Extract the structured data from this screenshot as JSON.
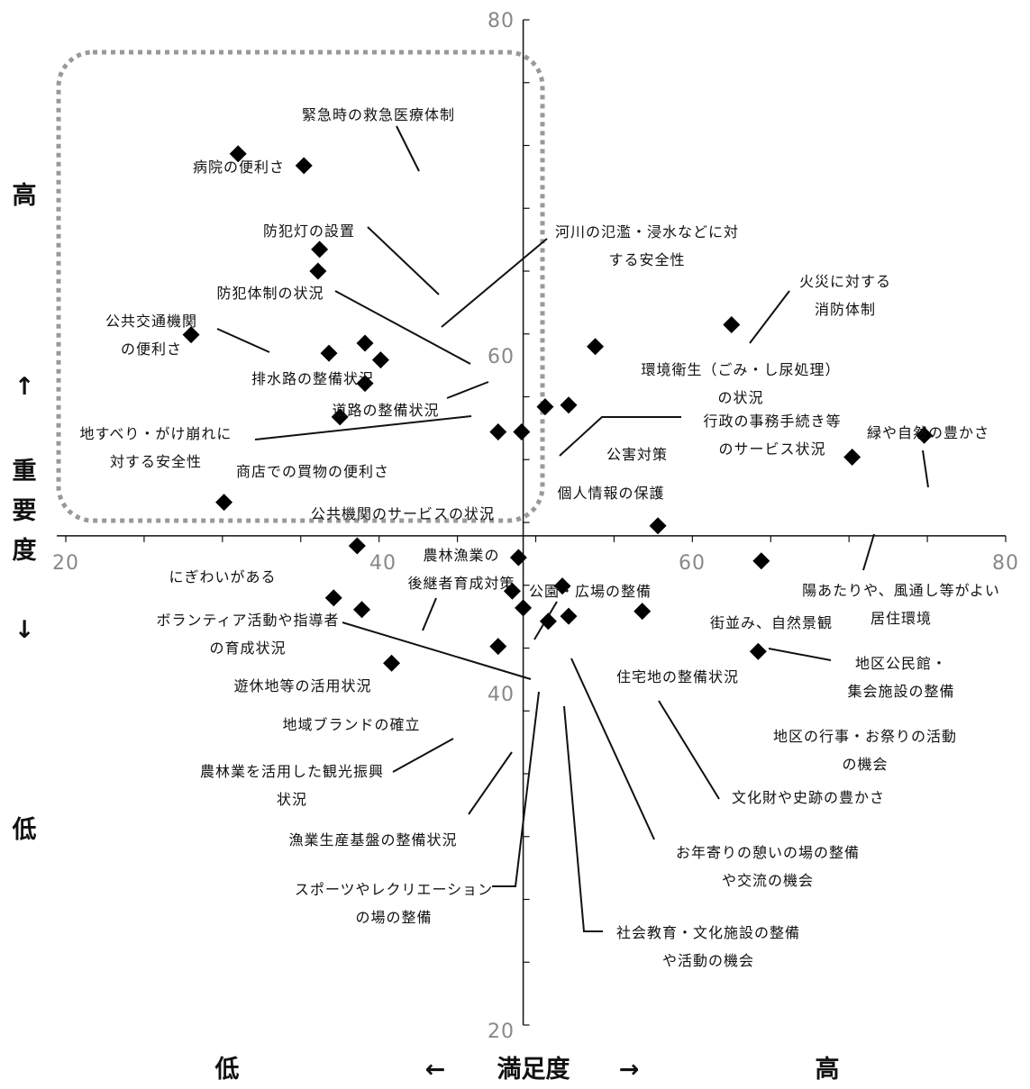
{
  "chart_data": {
    "type": "scatter",
    "title": "",
    "xlabel": "満足度",
    "ylabel": "重要度",
    "xlim": [
      20,
      80
    ],
    "ylim": [
      20,
      80
    ],
    "xticks": [
      "20",
      "40",
      "60",
      "80"
    ],
    "yticks": [
      "20",
      "40",
      "60",
      "80"
    ],
    "quadrant_center": [
      49.2,
      49.2
    ],
    "left_axis": {
      "high": "高",
      "up_arrow": "↑",
      "chars": [
        "重",
        "要",
        "度"
      ],
      "down_arrow": "↓",
      "low": "低"
    },
    "bottom_axis": {
      "low": "低",
      "left_arrow": "←",
      "label": "満足度",
      "right_arrow": "→",
      "high": "高"
    },
    "highlight_box_color": "#999999",
    "points": [
      {
        "label": [
          "緊急時の救急医療体制"
        ],
        "x": 35.2,
        "y": 71.3
      },
      {
        "label": [
          "病院の便利さ"
        ],
        "x": 31.0,
        "y": 72.0
      },
      {
        "label": [
          "防犯灯の設置"
        ],
        "x": 36.2,
        "y": 66.3
      },
      {
        "label": [
          "河川の氾濫・浸水などに対",
          "する安全性"
        ],
        "x": 36.1,
        "y": 65.0
      },
      {
        "label": [
          "防犯体制の状況"
        ],
        "x": 39.1,
        "y": 60.7
      },
      {
        "label": [
          "公共交通機関",
          "の便利さ"
        ],
        "x": 28.0,
        "y": 61.2
      },
      {
        "label": [
          "排水路の整備状況"
        ],
        "x": 36.8,
        "y": 60.1
      },
      {
        "label": [
          "道路の整備状況"
        ],
        "x": 40.1,
        "y": 59.7
      },
      {
        "label": [
          "地すべり・がけ崩れに",
          "対する安全性"
        ],
        "x": 39.1,
        "y": 58.3
      },
      {
        "label": [
          "商店での買物の便利さ"
        ],
        "x": 37.5,
        "y": 56.3
      },
      {
        "label": [
          "公共機関のサービスの状況"
        ],
        "x": 47.6,
        "y": 55.4
      },
      {
        "label": [
          "個人情報の保護"
        ],
        "x": 49.1,
        "y": 55.4
      },
      {
        "label": [
          "環境衛生（ごみ・し尿処理）",
          "の状況"
        ],
        "x": 53.8,
        "y": 60.5
      },
      {
        "label": [
          "行政の事務手続き等",
          "のサービス状況"
        ],
        "x": 50.6,
        "y": 56.9
      },
      {
        "label": [
          "公害対策"
        ],
        "x": 52.1,
        "y": 57.0
      },
      {
        "label": [
          "火災に対する",
          "消防体制"
        ],
        "x": 62.5,
        "y": 61.8
      },
      {
        "label": [
          "緑や自然の豊かさ"
        ],
        "x": 74.8,
        "y": 55.2
      },
      {
        "label": [
          "陽あたりや、風通し等がよい",
          "居住環境"
        ],
        "x": 70.2,
        "y": 53.9
      },
      {
        "label": [
          "にぎわいがある"
        ],
        "x": 30.1,
        "y": 51.2
      },
      {
        "label": [
          "農林漁業の",
          "後継者育成対策"
        ],
        "x": 38.6,
        "y": 48.6
      },
      {
        "label": [
          "公園・広場の整備"
        ],
        "x": 48.9,
        "y": 47.9
      },
      {
        "label": [
          "街並み、自然景観"
        ],
        "x": 57.8,
        "y": 49.8
      },
      {
        "label": [
          "地区公民館・",
          "集会施設の整備"
        ],
        "x": 64.4,
        "y": 47.7
      },
      {
        "label": [
          "ボランティア活動や指導者",
          "の育成状況"
        ],
        "x": 48.5,
        "y": 45.9
      },
      {
        "label": [
          "住宅地の整備状況"
        ],
        "x": 51.7,
        "y": 46.2
      },
      {
        "label": [
          "遊休地等の活用状況"
        ],
        "x": 37.1,
        "y": 45.5
      },
      {
        "label": [
          "地域ブランドの確立"
        ],
        "x": 38.9,
        "y": 44.8
      },
      {
        "label": [
          "文化財や史跡の豊かさ"
        ],
        "x": 56.8,
        "y": 44.7
      },
      {
        "label": [
          "地区の行事・お祭りの活動",
          "の機会"
        ],
        "x": 64.2,
        "y": 42.3
      },
      {
        "label": [
          "農林業を活用した観光振興",
          "状況"
        ],
        "x": 40.8,
        "y": 41.6
      },
      {
        "label": [
          "漁業生産基盤の整備状況"
        ],
        "x": 47.6,
        "y": 42.6
      },
      {
        "label": [
          "スポーツやレクリエーション",
          "の場の整備"
        ],
        "x": 49.2,
        "y": 44.9
      },
      {
        "label": [
          "社会教育・文化施設の整備",
          "や活動の機会"
        ],
        "x": 50.8,
        "y": 44.1
      },
      {
        "label": [
          "お年寄りの憩いの場の整備",
          "や交流の機会"
        ],
        "x": 52.1,
        "y": 44.4
      }
    ]
  }
}
